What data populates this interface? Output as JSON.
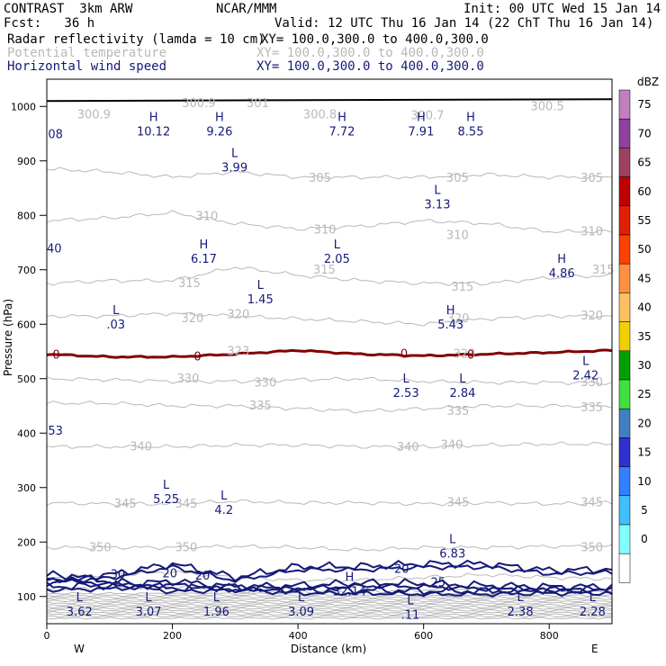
{
  "header": {
    "model": "CONTRAST  3km ARW",
    "org": "NCAR/MMM",
    "init": "Init: 00 UTC Wed 15 Jan 14",
    "fcst": "Fcst:   36 h",
    "valid": "Valid: 12 UTC Thu 16 Jan 14 (22 ChT Thu 16 Jan 14)",
    "fields": [
      {
        "name": "Radar reflectivity (lamda = 10 cm)",
        "xy": "XY= 100.0,300.0 to 400.0,300.0",
        "color": "#000000"
      },
      {
        "name": "Potential temperature",
        "xy": "XY= 100.0,300.0 to 400.0,300.0",
        "color": "#b8b8b8"
      },
      {
        "name": "Horizontal wind speed",
        "xy": "XY= 100.0,300.0 to 400.0,300.0",
        "color": "#141a78"
      }
    ]
  },
  "chart_data": {
    "type": "contour",
    "xlabel": "Distance (km)",
    "ylabel": "Pressure (hPa)",
    "xlim": [
      0,
      900
    ],
    "ylim": [
      1050,
      50
    ],
    "x_ticks": [
      0,
      200,
      400,
      600,
      800
    ],
    "y_ticks": [
      100,
      200,
      300,
      400,
      500,
      600,
      700,
      800,
      900,
      1000
    ],
    "x_end_labels": {
      "left": "W",
      "right": "E"
    },
    "colorbar": {
      "unit": "dBZ",
      "levels": [
        75,
        70,
        65,
        60,
        55,
        50,
        45,
        40,
        35,
        30,
        25,
        20,
        15,
        10,
        5,
        0
      ],
      "colors": [
        "#c080c0",
        "#9040a0",
        "#a04060",
        "#c00000",
        "#e02000",
        "#ff4000",
        "#ff9040",
        "#ffc060",
        "#f0d000",
        "#00a000",
        "#40e040",
        "#4080c0",
        "#3030d0",
        "#3080ff",
        "#40c0ff",
        "#80ffff",
        "#ffffff"
      ]
    },
    "theta_contours": [
      {
        "level": 300,
        "p": [
          1000,
          1000,
          1000,
          1000,
          1000,
          1000,
          1000,
          1000,
          1000,
          1000
        ]
      },
      {
        "level": 305,
        "p": [
          885,
          880,
          870,
          880,
          870,
          870,
          870,
          875,
          870,
          870
        ]
      },
      {
        "level": 310,
        "p": [
          790,
          795,
          805,
          785,
          775,
          780,
          790,
          785,
          770,
          770
        ]
      },
      {
        "level": 315,
        "p": [
          675,
          680,
          680,
          705,
          690,
          680,
          675,
          675,
          685,
          690
        ]
      },
      {
        "level": 320,
        "p": [
          615,
          615,
          620,
          615,
          610,
          605,
          600,
          610,
          615,
          615
        ]
      },
      {
        "level": 330,
        "p": [
          500,
          498,
          495,
          495,
          498,
          500,
          495,
          493,
          493,
          492
        ]
      },
      {
        "level": 335,
        "p": [
          455,
          455,
          450,
          450,
          445,
          440,
          445,
          450,
          450,
          450
        ]
      },
      {
        "level": 340,
        "p": [
          375,
          375,
          375,
          378,
          378,
          375,
          375,
          378,
          380,
          380
        ]
      },
      {
        "level": 345,
        "p": [
          272,
          270,
          270,
          275,
          272,
          272,
          270,
          272,
          270,
          272
        ]
      },
      {
        "level": 350,
        "p": [
          190,
          190,
          190,
          192,
          190,
          185,
          190,
          190,
          192,
          192
        ]
      },
      {
        "level": 355,
        "p": [
          135,
          140,
          145,
          135,
          130,
          130,
          135,
          140,
          135,
          132
        ]
      },
      {
        "level": 360,
        "p": [
          112,
          115,
          118,
          110,
          108,
          108,
          112,
          115,
          110,
          110
        ]
      }
    ],
    "theta_labels": [
      {
        "text": "300.9",
        "x": 75,
        "p": 985
      },
      {
        "text": "300.9",
        "x": 242,
        "p": 1005
      },
      {
        "text": "301",
        "x": 336,
        "p": 1005
      },
      {
        "text": "300.8",
        "x": 435,
        "p": 985
      },
      {
        "text": "300.7",
        "x": 606,
        "p": 983
      },
      {
        "text": "300.5",
        "x": 797,
        "p": 1000
      },
      {
        "text": "305",
        "x": 435,
        "p": 868
      },
      {
        "text": "305",
        "x": 654,
        "p": 868
      },
      {
        "text": "305",
        "x": 868,
        "p": 868
      },
      {
        "text": "310",
        "x": 255,
        "p": 798
      },
      {
        "text": "310",
        "x": 443,
        "p": 773
      },
      {
        "text": "310",
        "x": 654,
        "p": 763
      },
      {
        "text": "310",
        "x": 868,
        "p": 770
      },
      {
        "text": "315",
        "x": 227,
        "p": 675
      },
      {
        "text": "315",
        "x": 442,
        "p": 700
      },
      {
        "text": "315",
        "x": 662,
        "p": 668
      },
      {
        "text": "315",
        "x": 886,
        "p": 700
      },
      {
        "text": "320",
        "x": 232,
        "p": 610
      },
      {
        "text": "320",
        "x": 305,
        "p": 618
      },
      {
        "text": "320",
        "x": 868,
        "p": 615
      },
      {
        "text": "320",
        "x": 655,
        "p": 610
      },
      {
        "text": "323",
        "x": 305,
        "p": 550
      },
      {
        "text": "323",
        "x": 665,
        "p": 545
      },
      {
        "text": "330",
        "x": 225,
        "p": 500
      },
      {
        "text": "330",
        "x": 348,
        "p": 492
      },
      {
        "text": "330",
        "x": 868,
        "p": 493
      },
      {
        "text": "335",
        "x": 340,
        "p": 450
      },
      {
        "text": "335",
        "x": 655,
        "p": 440
      },
      {
        "text": "335",
        "x": 868,
        "p": 447
      },
      {
        "text": "340",
        "x": 150,
        "p": 375
      },
      {
        "text": "340",
        "x": 575,
        "p": 374
      },
      {
        "text": "340",
        "x": 645,
        "p": 378
      },
      {
        "text": "345",
        "x": 125,
        "p": 270
      },
      {
        "text": "345",
        "x": 222,
        "p": 270
      },
      {
        "text": "345",
        "x": 655,
        "p": 272
      },
      {
        "text": "345",
        "x": 868,
        "p": 272
      },
      {
        "text": "350",
        "x": 85,
        "p": 190
      },
      {
        "text": "350",
        "x": 222,
        "p": 190
      },
      {
        "text": "350",
        "x": 868,
        "p": 190
      }
    ],
    "wind_contours": [
      {
        "level": 20,
        "p": [
          130,
          140,
          160,
          135,
          155,
          155,
          160,
          160,
          148,
          150
        ]
      },
      {
        "level": 25,
        "p": [
          118,
          120,
          128,
          118,
          120,
          125,
          124,
          120,
          118,
          118
        ]
      },
      {
        "level": 30,
        "p": [
          140,
          128,
          115,
          118,
          112,
          112,
          110,
          110,
          112,
          112
        ]
      }
    ],
    "wind_labels": [
      {
        "text": "30",
        "x": 113,
        "p": 140
      },
      {
        "text": "20",
        "x": 196,
        "p": 142
      },
      {
        "text": "20",
        "x": 248,
        "p": 138
      },
      {
        "text": "25",
        "x": 623,
        "p": 125
      },
      {
        "text": "20",
        "x": 565,
        "p": 150
      }
    ],
    "zero_line": {
      "label": "0",
      "p": [
        545,
        540,
        540,
        545,
        552,
        545,
        542,
        545,
        548,
        552
      ]
    },
    "zero_labels": [
      {
        "text": "0",
        "x": 15,
        "p": 543
      },
      {
        "text": "0",
        "x": 240,
        "p": 540
      },
      {
        "text": "0",
        "x": 569,
        "p": 545
      },
      {
        "text": "0",
        "x": 675,
        "p": 543
      }
    ],
    "extrema": [
      {
        "type": "L",
        "value": "3.62",
        "x": 52,
        "p": 78
      },
      {
        "type": "L",
        "value": "3.07",
        "x": 162,
        "p": 78
      },
      {
        "type": "L",
        "value": "1.96",
        "x": 270,
        "p": 78
      },
      {
        "type": "L",
        "value": "3.09",
        "x": 405,
        "p": 78
      },
      {
        "type": "L",
        "value": ".11",
        "x": 579,
        "p": 72
      },
      {
        "type": "L",
        "value": "2.38",
        "x": 754,
        "p": 78
      },
      {
        "type": "L",
        "value": "2.28",
        "x": 869,
        "p": 78
      },
      {
        "type": "H",
        "value": "32.14",
        "x": 482,
        "p": 115
      },
      {
        "type": "L",
        "value": "6.83",
        "x": 646,
        "p": 185
      },
      {
        "type": "L",
        "value": "4.2",
        "x": 282,
        "p": 265
      },
      {
        "type": "L",
        "value": "5.25",
        "x": 190,
        "p": 285
      },
      {
        "type": "",
        "value": "53",
        "x": 2,
        "p": 410
      },
      {
        "type": "L",
        "value": "2.53",
        "x": 572,
        "p": 480
      },
      {
        "type": "L",
        "value": "2.84",
        "x": 662,
        "p": 480
      },
      {
        "type": "L",
        "value": "2.42",
        "x": 858,
        "p": 512
      },
      {
        "type": "L",
        "value": ".03",
        "x": 110,
        "p": 605
      },
      {
        "type": "H",
        "value": "5.43",
        "x": 643,
        "p": 605
      },
      {
        "type": "L",
        "value": "1.45",
        "x": 340,
        "p": 652
      },
      {
        "type": "H",
        "value": "4.86",
        "x": 820,
        "p": 700
      },
      {
        "type": "H",
        "value": "6.17",
        "x": 250,
        "p": 726
      },
      {
        "type": "L",
        "value": "2.05",
        "x": 462,
        "p": 726
      },
      {
        "type": "",
        "value": "40",
        "x": 0,
        "p": 745
      },
      {
        "type": "L",
        "value": "3.13",
        "x": 622,
        "p": 826
      },
      {
        "type": "L",
        "value": "3.99",
        "x": 299,
        "p": 894
      },
      {
        "type": "",
        "value": "08",
        "x": 2,
        "p": 955
      },
      {
        "type": "H",
        "value": "10.12",
        "x": 170,
        "p": 960
      },
      {
        "type": "H",
        "value": "9.26",
        "x": 275,
        "p": 960
      },
      {
        "type": "H",
        "value": "7.72",
        "x": 470,
        "p": 960
      },
      {
        "type": "H",
        "value": "7.91",
        "x": 596,
        "p": 960
      },
      {
        "type": "H",
        "value": "8.55",
        "x": 675,
        "p": 960
      }
    ],
    "ground_p": 1010,
    "colors": {
      "theta": "#b8b8b8",
      "wind": "#141a78",
      "zero": "#800000",
      "ground": "#000000"
    }
  }
}
